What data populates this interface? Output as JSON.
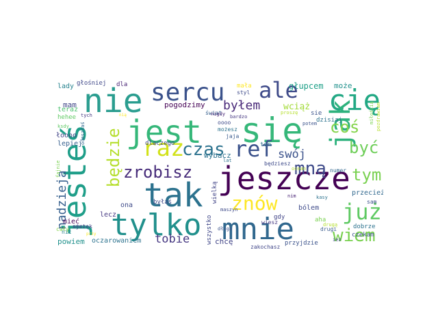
{
  "cloud": {
    "words": [
      {
        "text": "jest",
        "color": "#35b779"
      },
      {
        "text": "się",
        "color": "#35b779"
      },
      {
        "text": "nie",
        "color": "#2a9d8f"
      },
      {
        "text": "jesteś",
        "color": "#1f9e89"
      },
      {
        "text": "jeszcze",
        "color": "#440154"
      },
      {
        "text": "tak",
        "color": "#2c728e"
      },
      {
        "text": "tylko",
        "color": "#21908c"
      },
      {
        "text": "mnie",
        "color": "#31688e"
      },
      {
        "text": "cię",
        "color": "#22a884"
      },
      {
        "text": "jak",
        "color": "#2db27d"
      },
      {
        "text": "sercu",
        "color": "#3b528b"
      },
      {
        "text": "ale",
        "color": "#3e4a89"
      },
      {
        "text": "raz",
        "color": "#d2e21b"
      },
      {
        "text": "ref",
        "color": "#3b528b"
      },
      {
        "text": "mną",
        "color": "#3e4a89"
      },
      {
        "text": "znów",
        "color": "#fde725"
      },
      {
        "text": "już",
        "color": "#5ec962"
      },
      {
        "text": "wiem",
        "color": "#7ad151"
      },
      {
        "text": "czas",
        "color": "#2c728e"
      },
      {
        "text": "zrobisz",
        "color": "#472c7a"
      },
      {
        "text": "będzie",
        "color": "#b5de2b"
      },
      {
        "text": "coś",
        "color": "#84d44b"
      },
      {
        "text": "być",
        "color": "#6ece58"
      },
      {
        "text": "tym",
        "color": "#7ad151"
      },
      {
        "text": "nadzieja",
        "color": "#355f8d"
      },
      {
        "text": "swój",
        "color": "#3b528b"
      },
      {
        "text": "tobie",
        "color": "#453781"
      },
      {
        "text": "byłem",
        "color": "#482878"
      },
      {
        "text": "pogodzimy",
        "color": "#440154"
      },
      {
        "text": "wciąż",
        "color": "#a2da37"
      },
      {
        "text": "głupcem",
        "color": "#1fa088"
      },
      {
        "text": "może",
        "color": "#21918c"
      },
      {
        "text": "mam",
        "color": "#404688"
      },
      {
        "text": "lady",
        "color": "#26828e"
      },
      {
        "text": "głośniej",
        "color": "#3f4788"
      },
      {
        "text": "dla",
        "color": "#482475"
      },
      {
        "text": "teraz",
        "color": "#4ac16d"
      },
      {
        "text": "hehee",
        "color": "#5ec962"
      },
      {
        "text": "tych",
        "color": "#453781"
      },
      {
        "text": "łoooo",
        "color": "#414487"
      },
      {
        "text": "lepiej",
        "color": "#355f8d"
      },
      {
        "text": "ksdy",
        "color": "#5ec962"
      },
      {
        "text": "mieć",
        "color": "#440154"
      },
      {
        "text": "ona",
        "color": "#3e4a89"
      },
      {
        "text": "nic",
        "color": "#27808e"
      },
      {
        "text": "smutek",
        "color": "#414487"
      },
      {
        "text": "cały",
        "color": "#84d44b"
      },
      {
        "text": "lecz",
        "color": "#453781"
      },
      {
        "text": "powiem",
        "color": "#21918c"
      },
      {
        "text": "oczarowaniem",
        "color": "#2c728e"
      },
      {
        "text": "wybacz",
        "color": "#2c728e"
      },
      {
        "text": "dlaczego",
        "color": "#3f4788"
      },
      {
        "text": "byłaś",
        "color": "#3e4a89"
      },
      {
        "text": "wszystko",
        "color": "#3f4788"
      },
      {
        "text": "wielką",
        "color": "#414487"
      },
      {
        "text": "świat",
        "color": "#355f8d"
      },
      {
        "text": "nigdy",
        "color": "#482475"
      },
      {
        "text": "oooo",
        "color": "#3e4a89"
      },
      {
        "text": "możesz",
        "color": "#2c728e"
      },
      {
        "text": "gdy",
        "color": "#414487"
      },
      {
        "text": "jaja",
        "color": "#38598c"
      },
      {
        "text": "chcę",
        "color": "#414487"
      },
      {
        "text": "ten",
        "color": "#2c728e"
      },
      {
        "text": "będziesz",
        "color": "#3e4a89"
      },
      {
        "text": "wiesz",
        "color": "#453781"
      },
      {
        "text": "zakochasz",
        "color": "#404688"
      },
      {
        "text": "przyjdzie",
        "color": "#3b528b"
      },
      {
        "text": "bólem",
        "color": "#3e4a89"
      },
      {
        "text": "aha",
        "color": "#7ad151"
      },
      {
        "text": "drugi",
        "color": "#38598c"
      },
      {
        "text": "przecież",
        "color": "#31688e"
      },
      {
        "text": "dobrze",
        "color": "#2c728e"
      },
      {
        "text": "czekam",
        "color": "#3b528b"
      },
      {
        "text": "numer",
        "color": "#31688e"
      },
      {
        "text": "dzisiaj",
        "color": "#2c728e"
      },
      {
        "text": "sie",
        "color": "#3b528b"
      },
      {
        "text": "mała",
        "color": "#fde725"
      },
      {
        "text": "styl",
        "color": "#3e4a89"
      },
      {
        "text": "bardzo",
        "color": "#453781"
      },
      {
        "text": "proszę",
        "color": "#b5de2b"
      },
      {
        "text": "potem",
        "color": "#3b528b"
      },
      {
        "text": "miłością",
        "color": "#7ad151"
      },
      {
        "text": "pozdrawiam",
        "color": "#b5de2b"
      },
      {
        "text": "sam",
        "color": "#3b528b"
      },
      {
        "text": "kasy",
        "color": "#2c728e"
      },
      {
        "text": "ujrzę",
        "color": "#3e4a89"
      },
      {
        "text": "fajnie",
        "color": "#7ad151"
      },
      {
        "text": "odeszłaś",
        "color": "#31688e"
      },
      {
        "text": "ocean",
        "color": "#b5de2b"
      },
      {
        "text": "nim",
        "color": "#482475"
      },
      {
        "text": "maszyn",
        "color": "#3e4a89"
      },
      {
        "text": "lat",
        "color": "#2c728e"
      },
      {
        "text": "przy",
        "color": "#fde725"
      },
      {
        "text": "długa",
        "color": "#3b528b"
      },
      {
        "text": "ież",
        "color": "#3e4a89"
      },
      {
        "text": "nią",
        "color": "#fde725"
      },
      {
        "text": "drugą",
        "color": "#b5de2b"
      }
    ]
  }
}
